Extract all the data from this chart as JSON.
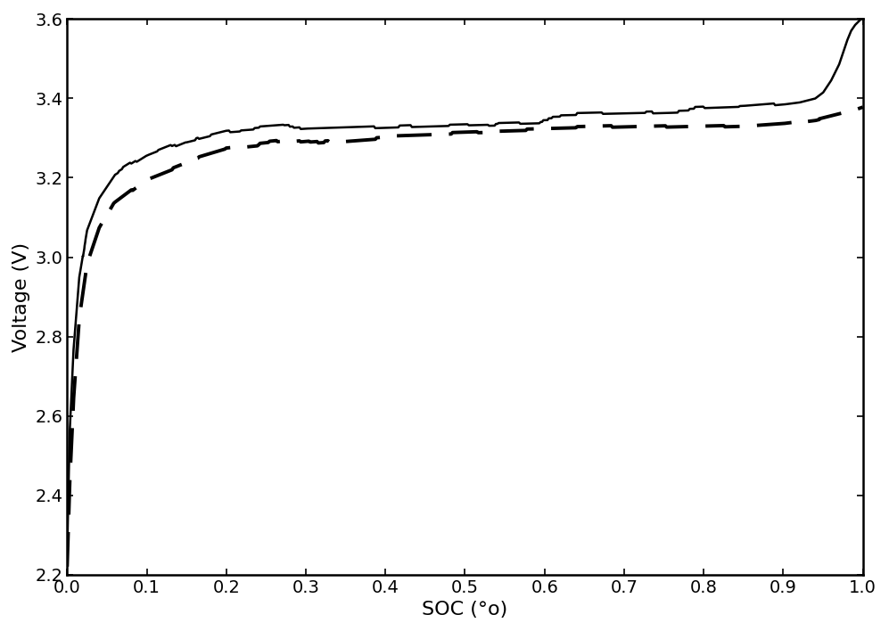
{
  "xlabel": "SOC (°o)",
  "ylabel": "Voltage (V)",
  "xlim": [
    0,
    1.0
  ],
  "ylim": [
    2.2,
    3.6
  ],
  "xticks": [
    0,
    0.1,
    0.2,
    0.3,
    0.4,
    0.5,
    0.6,
    0.7,
    0.8,
    0.9,
    1.0
  ],
  "yticks": [
    2.2,
    2.4,
    2.6,
    2.8,
    3.0,
    3.2,
    3.4,
    3.6
  ],
  "line_color": "#000000",
  "background_color": "#ffffff",
  "label_fontsize": 16,
  "tick_fontsize": 14,
  "solid_lw": 1.8,
  "dash_lw": 2.8,
  "dash_pattern": [
    10,
    5
  ]
}
